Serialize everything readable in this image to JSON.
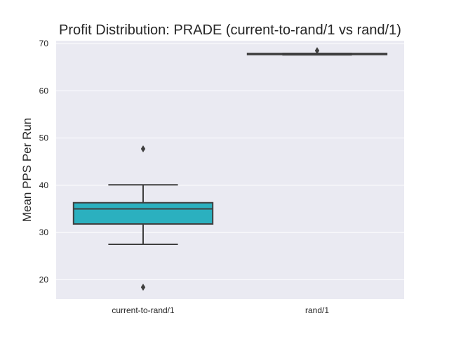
{
  "chart_data": {
    "type": "box",
    "title": "Profit Distribution: PRADE (current-to-rand/1 vs rand/1)",
    "xlabel": "",
    "ylabel": "Mean PPS Per Run",
    "ylim": [
      15.9,
      70.6
    ],
    "yticks": [
      20,
      30,
      40,
      50,
      60,
      70
    ],
    "grid": true,
    "categories": [
      "current-to-rand/1",
      "rand/1"
    ],
    "boxes": [
      {
        "category": "current-to-rand/1",
        "color": "#2bb0bf",
        "whisker_low": 27.5,
        "q1": 31.8,
        "median": 35.0,
        "q3": 36.3,
        "whisker_high": 40.1,
        "outliers": [
          47.7,
          18.4
        ]
      },
      {
        "category": "rand/1",
        "color": "#8c72c4",
        "whisker_low": 67.6,
        "q1": 67.7,
        "median": 67.8,
        "q3": 67.9,
        "whisker_high": 67.9,
        "outliers": [
          68.5
        ]
      }
    ]
  }
}
